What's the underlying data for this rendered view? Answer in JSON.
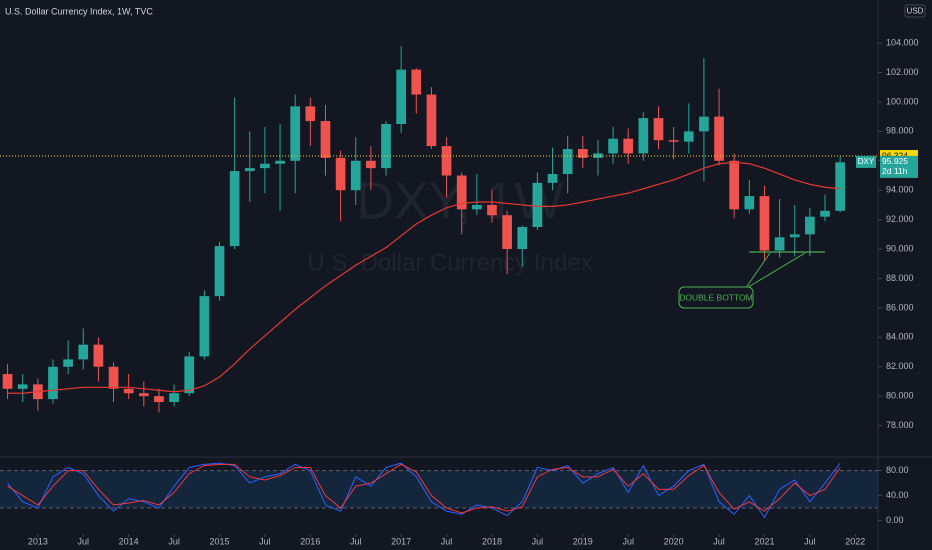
{
  "header": {
    "title": "U.S. Dollar Currency Index, 1W, TVC",
    "currency": "USD",
    "watermark_symbol": "DXY, 1W",
    "watermark_name": "U.S. Dollar Currency Index"
  },
  "chart_data": [
    {
      "type": "candlestick",
      "x": [
        "2012-08",
        "2012-10",
        "2012-12",
        "2013-02",
        "2013-04",
        "2013-06",
        "2013-08",
        "2013-10",
        "2013-12",
        "2014-02",
        "2014-04",
        "2014-06",
        "2014-08",
        "2014-10",
        "2014-12",
        "2015-02",
        "2015-04",
        "2015-06",
        "2015-08",
        "2015-10",
        "2015-12",
        "2016-02",
        "2016-04",
        "2016-06",
        "2016-08",
        "2016-10",
        "2016-12",
        "2017-02",
        "2017-04",
        "2017-06",
        "2017-08",
        "2017-10",
        "2017-12",
        "2018-02",
        "2018-04",
        "2018-06",
        "2018-08",
        "2018-10",
        "2018-12",
        "2019-02",
        "2019-04",
        "2019-06",
        "2019-08",
        "2019-10",
        "2019-12",
        "2020-02",
        "2020-04",
        "2020-06",
        "2020-08",
        "2020-10",
        "2020-12",
        "2021-02",
        "2021-04",
        "2021-06",
        "2021-08",
        "2021-10"
      ],
      "open": [
        81.5,
        80.5,
        80.8,
        79.8,
        82.0,
        82.5,
        83.5,
        82.0,
        80.5,
        80.2,
        80.0,
        79.6,
        80.2,
        82.7,
        86.8,
        90.2,
        95.3,
        95.5,
        95.8,
        96.0,
        99.7,
        98.7,
        96.2,
        94.0,
        96.0,
        95.5,
        98.5,
        102.2,
        100.5,
        97.0,
        95.0,
        92.7,
        93.0,
        92.3,
        90.0,
        91.5,
        94.5,
        95.1,
        96.8,
        96.2,
        96.5,
        97.5,
        96.5,
        98.9,
        97.4,
        97.3,
        98.0,
        99.0,
        96.0,
        92.7,
        93.6,
        89.9,
        90.8,
        91.0,
        92.2,
        92.6
      ],
      "high": [
        82.2,
        81.5,
        81.2,
        82.5,
        83.8,
        84.6,
        84.0,
        82.3,
        81.5,
        81.0,
        80.5,
        80.8,
        83.0,
        87.2,
        90.5,
        100.3,
        98.0,
        98.3,
        98.5,
        100.5,
        100.3,
        99.8,
        96.7,
        97.6,
        97.0,
        98.7,
        103.8,
        102.3,
        101.0,
        97.6,
        95.2,
        95.1,
        94.0,
        92.6,
        91.6,
        95.2,
        96.9,
        97.7,
        97.7,
        97.4,
        98.3,
        98.2,
        99.3,
        99.7,
        98.3,
        99.9,
        103.0,
        100.9,
        96.5,
        94.7,
        94.3,
        93.4,
        93.0,
        92.8,
        93.7,
        96.3
      ],
      "low": [
        79.8,
        79.6,
        79.0,
        79.5,
        81.5,
        81.8,
        81.0,
        79.6,
        79.8,
        79.3,
        78.9,
        79.3,
        80.0,
        82.5,
        86.5,
        90.0,
        93.2,
        93.8,
        92.6,
        93.8,
        97.0,
        95.0,
        91.9,
        93.0,
        94.0,
        95.0,
        97.9,
        99.2,
        96.8,
        93.5,
        91.0,
        92.3,
        91.8,
        88.3,
        88.8,
        91.3,
        94.0,
        93.8,
        95.5,
        95.0,
        95.8,
        95.8,
        96.0,
        96.8,
        96.1,
        96.5,
        94.6,
        95.7,
        92.1,
        92.4,
        89.2,
        89.4,
        89.5,
        89.5,
        91.9,
        92.5
      ],
      "close": [
        80.5,
        80.8,
        79.8,
        82.0,
        82.5,
        83.5,
        82.0,
        80.5,
        80.2,
        80.0,
        79.6,
        80.2,
        82.7,
        86.8,
        90.2,
        95.3,
        95.5,
        95.8,
        96.0,
        99.7,
        98.7,
        96.2,
        94.0,
        96.0,
        95.5,
        98.5,
        102.2,
        100.5,
        97.0,
        95.0,
        92.7,
        93.0,
        92.3,
        90.0,
        91.5,
        94.5,
        95.1,
        96.8,
        96.2,
        96.5,
        97.5,
        96.5,
        98.9,
        97.4,
        97.3,
        98.0,
        99.0,
        96.0,
        92.7,
        93.6,
        89.9,
        90.8,
        91.0,
        92.2,
        92.6,
        95.9
      ],
      "up_color": "#26a69a",
      "down_color": "#ef5350",
      "overlays": [
        {
          "color": "#e53935",
          "values": [
            80.2,
            80.2,
            80.3,
            80.4,
            80.5,
            80.6,
            80.6,
            80.6,
            80.6,
            80.5,
            80.4,
            80.3,
            80.4,
            80.7,
            81.3,
            82.2,
            83.2,
            84.1,
            85.0,
            85.9,
            86.7,
            87.5,
            88.2,
            88.9,
            89.5,
            90.1,
            90.9,
            91.7,
            92.3,
            92.8,
            93.1,
            93.2,
            93.2,
            93.1,
            93.0,
            92.9,
            92.9,
            93.0,
            93.2,
            93.4,
            93.6,
            93.8,
            94.1,
            94.4,
            94.7,
            95.1,
            95.5,
            95.8,
            95.9,
            95.8,
            95.5,
            95.1,
            94.7,
            94.4,
            94.2,
            94.1
          ]
        }
      ],
      "xlim": [
        "2012-08",
        "2022-04"
      ],
      "xticks": [
        {
          "value": "2013-01",
          "label": "2013"
        },
        {
          "value": "2013-07",
          "label": "Jul"
        },
        {
          "value": "2014-01",
          "label": "2014"
        },
        {
          "value": "2014-07",
          "label": "Jul"
        },
        {
          "value": "2015-01",
          "label": "2015"
        },
        {
          "value": "2015-07",
          "label": "Jul"
        },
        {
          "value": "2016-01",
          "label": "2016"
        },
        {
          "value": "2016-07",
          "label": "Jul"
        },
        {
          "value": "2017-01",
          "label": "2017"
        },
        {
          "value": "2017-07",
          "label": "Jul"
        },
        {
          "value": "2018-01",
          "label": "2018"
        },
        {
          "value": "2018-07",
          "label": "Jul"
        },
        {
          "value": "2019-01",
          "label": "2019"
        },
        {
          "value": "2019-07",
          "label": "Jul"
        },
        {
          "value": "2020-01",
          "label": "2020"
        },
        {
          "value": "2020-07",
          "label": "Jul"
        },
        {
          "value": "2021-01",
          "label": "2021"
        },
        {
          "value": "2021-07",
          "label": "Jul"
        },
        {
          "value": "2022-01",
          "label": "2022"
        }
      ],
      "ylim": [
        76,
        106.93
      ],
      "yticks": [
        {
          "value": 78,
          "label": "78.000"
        },
        {
          "value": 80,
          "label": "80.000"
        },
        {
          "value": 82,
          "label": "82.000"
        },
        {
          "value": 84,
          "label": "84.000"
        },
        {
          "value": 86,
          "label": "86.000"
        },
        {
          "value": 88,
          "label": "88.000"
        },
        {
          "value": 90,
          "label": "90.000"
        },
        {
          "value": 92,
          "label": "92.000"
        },
        {
          "value": 94,
          "label": "94.000"
        },
        {
          "value": 96,
          "label": "96.000"
        },
        {
          "value": 98,
          "label": "98.000"
        },
        {
          "value": 100,
          "label": "100.000"
        },
        {
          "value": 102,
          "label": "102.000"
        },
        {
          "value": 104,
          "label": "104.000"
        }
      ],
      "price_line": 96.324,
      "last": {
        "symbol": "DXY",
        "price": 95.925,
        "countdown": "2d 11h"
      },
      "annotations": [
        {
          "text": "DOUBLE BOTTOM",
          "level": 89.8,
          "from": "2020-11",
          "to": "2021-09",
          "color": "#4caf50"
        }
      ]
    },
    {
      "type": "line",
      "x": [
        "2012-08",
        "2012-10",
        "2012-12",
        "2013-02",
        "2013-04",
        "2013-06",
        "2013-08",
        "2013-10",
        "2013-12",
        "2014-02",
        "2014-04",
        "2014-06",
        "2014-08",
        "2014-10",
        "2014-12",
        "2015-02",
        "2015-04",
        "2015-06",
        "2015-08",
        "2015-10",
        "2015-12",
        "2016-02",
        "2016-04",
        "2016-06",
        "2016-08",
        "2016-10",
        "2016-12",
        "2017-02",
        "2017-04",
        "2017-06",
        "2017-08",
        "2017-10",
        "2017-12",
        "2018-02",
        "2018-04",
        "2018-06",
        "2018-08",
        "2018-10",
        "2018-12",
        "2019-02",
        "2019-04",
        "2019-06",
        "2019-08",
        "2019-10",
        "2019-12",
        "2020-02",
        "2020-04",
        "2020-06",
        "2020-08",
        "2020-10",
        "2020-12",
        "2021-02",
        "2021-04",
        "2021-06",
        "2021-08",
        "2021-10"
      ],
      "series": [
        {
          "color": "#2962ff",
          "values": [
            60,
            30,
            20,
            70,
            85,
            75,
            40,
            15,
            35,
            30,
            20,
            55,
            85,
            90,
            92,
            88,
            60,
            70,
            75,
            90,
            80,
            25,
            15,
            70,
            55,
            85,
            92,
            70,
            30,
            15,
            10,
            25,
            20,
            8,
            30,
            85,
            80,
            88,
            60,
            75,
            85,
            45,
            88,
            40,
            55,
            80,
            90,
            30,
            10,
            40,
            5,
            50,
            65,
            30,
            60,
            92
          ]
        },
        {
          "color": "#f23645",
          "values": [
            55,
            40,
            25,
            55,
            80,
            80,
            50,
            25,
            28,
            32,
            25,
            45,
            75,
            88,
            90,
            90,
            70,
            65,
            72,
            85,
            85,
            40,
            20,
            55,
            60,
            75,
            90,
            78,
            40,
            20,
            12,
            20,
            22,
            15,
            22,
            70,
            82,
            85,
            70,
            70,
            82,
            55,
            75,
            50,
            50,
            72,
            88,
            45,
            18,
            30,
            15,
            35,
            60,
            40,
            50,
            85
          ]
        }
      ],
      "bands": [
        20,
        80
      ],
      "xlim": [
        "2012-08",
        "2022-04"
      ],
      "ylim": [
        -20,
        97
      ],
      "yticks": [
        {
          "value": 0,
          "label": "0.00"
        },
        {
          "value": 40,
          "label": "40.00"
        },
        {
          "value": 80,
          "label": "80.00"
        }
      ]
    }
  ]
}
